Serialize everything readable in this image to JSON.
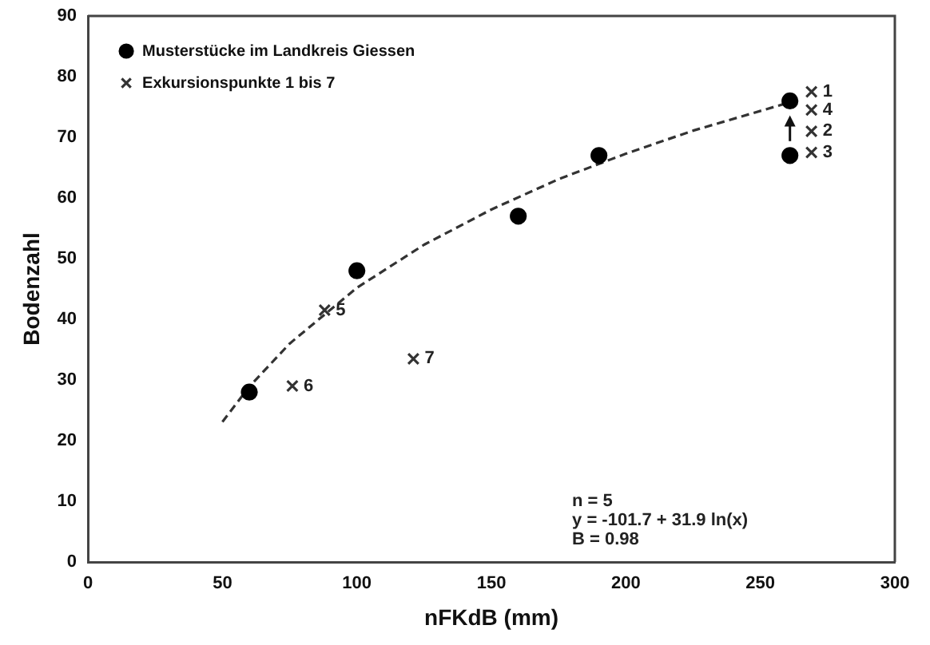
{
  "chart_data": {
    "type": "scatter",
    "xlabel": "nFKdB (mm)",
    "ylabel": "Bodenzahl",
    "xlim": [
      0,
      300
    ],
    "xticks": [
      0,
      50,
      100,
      150,
      200,
      250,
      300
    ],
    "ylim": [
      0,
      90
    ],
    "yticks": [
      0,
      10,
      20,
      30,
      40,
      50,
      60,
      70,
      80,
      90
    ],
    "grid": false,
    "legend": "top left",
    "series": [
      {
        "name": "Musterstücke im Landkreis Giessen",
        "marker": "circle",
        "color": "#000000",
        "x": [
          60,
          100,
          160,
          190,
          261,
          261
        ],
        "values": [
          28,
          48,
          57,
          67,
          76,
          67
        ]
      },
      {
        "name": "Exkursionspunkte 1 bis 7",
        "marker": "cross",
        "color": "#333333",
        "x": [
          269,
          269,
          269,
          269,
          88,
          76,
          121
        ],
        "values": [
          77.5,
          71,
          67.5,
          74.5,
          41.5,
          29,
          33.5
        ]
      },
      {
        "type": "line",
        "marker": "none",
        "line_style": "dashed",
        "color": "#333333",
        "x": [
          50,
          60,
          75,
          100,
          125,
          150,
          175,
          200,
          225,
          262
        ],
        "values": [
          23.1,
          28.9,
          36,
          45.2,
          52.3,
          58.1,
          63.1,
          67.3,
          71.1,
          75.9
        ]
      }
    ],
    "annotations": [
      {
        "text": "1",
        "x": 269,
        "y": 77.5
      },
      {
        "text": "2",
        "x": 269,
        "y": 71
      },
      {
        "text": "3",
        "x": 269,
        "y": 67.5
      },
      {
        "text": "4",
        "x": 269,
        "y": 74.5
      },
      {
        "text": "5",
        "x": 88,
        "y": 41.5
      },
      {
        "text": "6",
        "x": 76,
        "y": 29
      },
      {
        "text": "7",
        "x": 121,
        "y": 33.5
      },
      "n = 5",
      "y = -101.7 + 31.9 ln(x)",
      "B = 0.98"
    ]
  }
}
